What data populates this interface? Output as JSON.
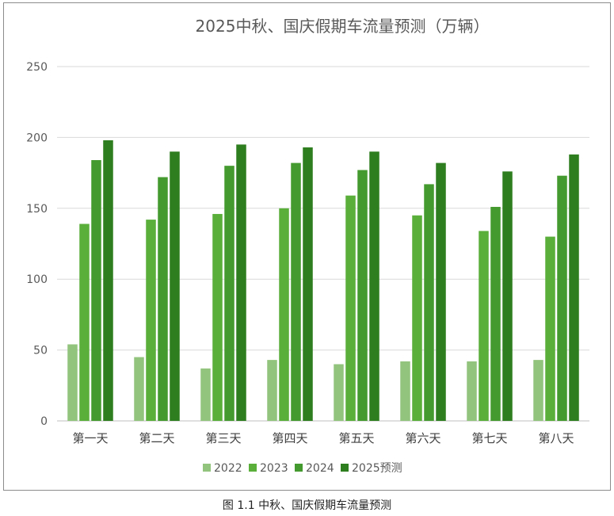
{
  "caption": "图 1.1 中秋、国庆假期车流量预测",
  "colors": {
    "s2022": "#93c47d",
    "s2023": "#5aae3a",
    "s2024": "#449a2e",
    "s2025": "#2e7d1f",
    "grid": "#d9d9d9",
    "axis": "#bfbfbf"
  },
  "chart_data": {
    "type": "bar",
    "title": "2025中秋、国庆假期车流量预测（万辆）",
    "xlabel": "",
    "ylabel": "",
    "ylim": [
      0,
      250
    ],
    "yticks": [
      0,
      50,
      100,
      150,
      200,
      250
    ],
    "grid": true,
    "legend_position": "bottom",
    "categories": [
      "第一天",
      "第二天",
      "第三天",
      "第四天",
      "第五天",
      "第六天",
      "第七天",
      "第八天"
    ],
    "series": [
      {
        "name": "2022",
        "values": [
          54,
          45,
          37,
          43,
          40,
          42,
          42,
          43
        ]
      },
      {
        "name": "2023",
        "values": [
          139,
          142,
          146,
          150,
          159,
          145,
          134,
          130
        ]
      },
      {
        "name": "2024",
        "values": [
          184,
          172,
          180,
          182,
          177,
          167,
          151,
          173
        ]
      },
      {
        "name": "2025预测",
        "values": [
          198,
          190,
          195,
          193,
          190,
          182,
          176,
          188
        ]
      }
    ]
  }
}
